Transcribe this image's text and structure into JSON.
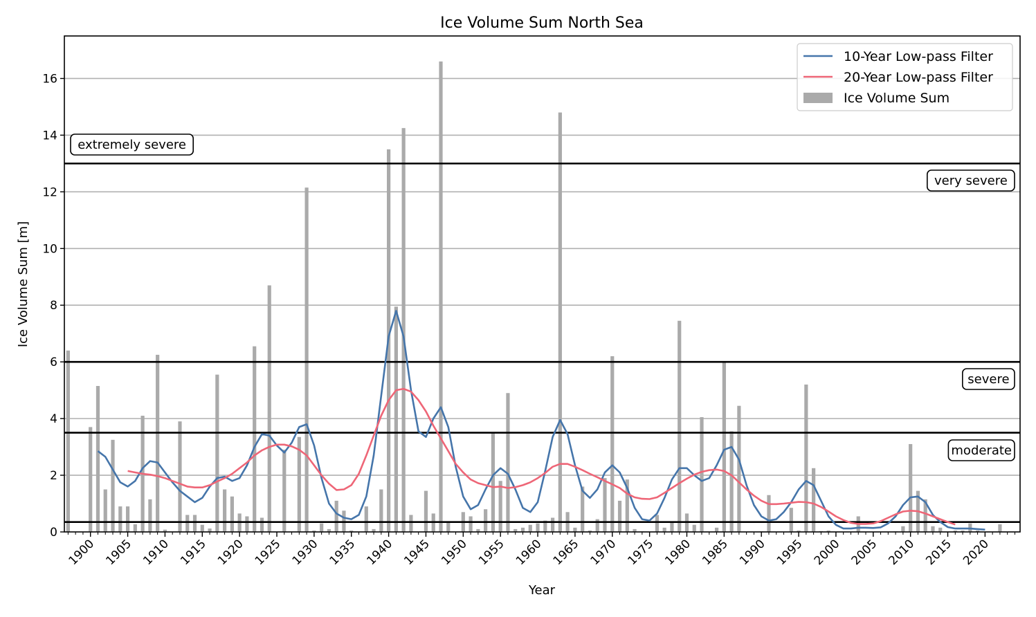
{
  "chart_data": {
    "type": "bar+line",
    "title": "Ice Volume Sum North Sea",
    "xlabel": "Year",
    "ylabel": "Ice Volume Sum [m]",
    "xlim": [
      1896.5,
      2024.7
    ],
    "ylim": [
      0,
      17.5
    ],
    "xticks": [
      1900,
      1905,
      1910,
      1915,
      1920,
      1925,
      1930,
      1935,
      1940,
      1945,
      1950,
      1955,
      1960,
      1965,
      1970,
      1975,
      1980,
      1985,
      1990,
      1995,
      2000,
      2005,
      2010,
      2015,
      2020
    ],
    "yticks": [
      0,
      2,
      4,
      6,
      8,
      10,
      12,
      14,
      16
    ],
    "grid": "horizontal",
    "legend_position": "top-right",
    "colors": {
      "bars": "#aaaaaa",
      "filter10": "#4575aa",
      "filter20": "#ee6677",
      "threshold": "#000000",
      "grid": "#b0b0b0"
    },
    "thresholds": [
      {
        "value": 0.35
      },
      {
        "value": 3.5,
        "label": "moderate"
      },
      {
        "value": 6,
        "label": "severe"
      },
      {
        "value": 13,
        "label": "very severe"
      },
      {
        "label": "extremely severe"
      }
    ],
    "series": [
      {
        "name": "10-Year Low-pass Filter",
        "kind": "line",
        "start_year": 1901,
        "values": [
          2.85,
          2.65,
          2.2,
          1.75,
          1.6,
          1.8,
          2.25,
          2.5,
          2.45,
          2.1,
          1.75,
          1.45,
          1.25,
          1.05,
          1.2,
          1.6,
          1.9,
          1.95,
          1.8,
          1.9,
          2.35,
          3.0,
          3.45,
          3.4,
          3.05,
          2.8,
          3.15,
          3.7,
          3.8,
          3.05,
          1.9,
          1.0,
          0.65,
          0.5,
          0.45,
          0.6,
          1.25,
          2.7,
          4.8,
          6.9,
          7.8,
          6.9,
          5.0,
          3.55,
          3.35,
          4.0,
          4.4,
          3.7,
          2.3,
          1.25,
          0.8,
          0.95,
          1.5,
          2.0,
          2.25,
          2.05,
          1.5,
          0.85,
          0.7,
          1.05,
          2.15,
          3.35,
          3.95,
          3.45,
          2.35,
          1.45,
          1.2,
          1.5,
          2.1,
          2.35,
          2.1,
          1.55,
          0.85,
          0.45,
          0.4,
          0.65,
          1.2,
          1.85,
          2.25,
          2.25,
          2.0,
          1.8,
          1.9,
          2.35,
          2.9,
          3.0,
          2.55,
          1.65,
          0.95,
          0.55,
          0.4,
          0.45,
          0.7,
          1.05,
          1.5,
          1.8,
          1.65,
          1.1,
          0.55,
          0.25,
          0.12,
          0.12,
          0.15,
          0.15,
          0.14,
          0.16,
          0.3,
          0.55,
          0.95,
          1.22,
          1.25,
          1.05,
          0.6,
          0.35,
          0.17,
          0.12,
          0.12,
          0.12,
          0.1,
          0.08
        ]
      },
      {
        "name": "20-Year Low-pass Filter",
        "kind": "line",
        "start_year": 1905,
        "values": [
          2.15,
          2.1,
          2.05,
          2.02,
          1.97,
          1.9,
          1.8,
          1.7,
          1.6,
          1.57,
          1.57,
          1.65,
          1.78,
          1.9,
          2.05,
          2.25,
          2.45,
          2.7,
          2.88,
          3.0,
          3.08,
          3.08,
          3.02,
          2.9,
          2.7,
          2.35,
          2.0,
          1.7,
          1.48,
          1.5,
          1.65,
          2.05,
          2.7,
          3.4,
          4.1,
          4.65,
          5.0,
          5.05,
          4.95,
          4.65,
          4.25,
          3.75,
          3.3,
          2.85,
          2.4,
          2.1,
          1.85,
          1.72,
          1.65,
          1.58,
          1.6,
          1.55,
          1.58,
          1.65,
          1.75,
          1.9,
          2.08,
          2.3,
          2.4,
          2.4,
          2.3,
          2.18,
          2.05,
          1.93,
          1.8,
          1.68,
          1.55,
          1.35,
          1.22,
          1.17,
          1.16,
          1.22,
          1.38,
          1.55,
          1.72,
          1.88,
          2.02,
          2.12,
          2.18,
          2.2,
          2.15,
          2.0,
          1.75,
          1.5,
          1.28,
          1.1,
          0.98,
          0.98,
          1.0,
          1.03,
          1.06,
          1.05,
          1.0,
          0.88,
          0.72,
          0.55,
          0.42,
          0.32,
          0.28,
          0.28,
          0.3,
          0.38,
          0.5,
          0.62,
          0.72,
          0.75,
          0.73,
          0.65,
          0.55,
          0.45,
          0.35,
          0.26
        ]
      },
      {
        "name": "Ice Volume Sum",
        "kind": "bar",
        "start_year": 1897,
        "values": [
          6.4,
          0,
          0,
          3.7,
          5.15,
          1.5,
          3.25,
          0.9,
          0.9,
          0.27,
          4.1,
          1.15,
          6.25,
          0.08,
          0,
          3.9,
          0.6,
          0.6,
          0.25,
          0.12,
          5.55,
          1.5,
          1.25,
          0.65,
          0.55,
          6.55,
          0.5,
          8.7,
          0,
          2.9,
          0,
          3.35,
          12.15,
          0.05,
          0.3,
          0.1,
          1.1,
          0.75,
          0.05,
          0,
          0.9,
          0.1,
          1.5,
          13.5,
          7.95,
          14.25,
          0.6,
          0,
          1.45,
          0.65,
          16.6,
          0.35,
          0,
          0.7,
          0.55,
          0.1,
          0.8,
          3.5,
          1.8,
          4.9,
          0.1,
          0.15,
          0.25,
          0.3,
          0.4,
          0.5,
          14.8,
          0.7,
          0.15,
          1.6,
          0.05,
          0.45,
          1.9,
          6.2,
          1.1,
          1.85,
          0.1,
          0.02,
          0,
          0.6,
          0.15,
          0.35,
          7.45,
          0.65,
          0.25,
          4.05,
          0,
          0.15,
          6.0,
          3.55,
          4.45,
          0,
          0,
          0.02,
          1.3,
          0,
          0,
          0.85,
          0.05,
          5.2,
          2.25,
          0.03,
          0.05,
          0,
          0,
          0,
          0.55,
          0,
          0,
          0,
          0,
          0.02,
          0.2,
          3.1,
          1.45,
          1.15,
          0.2,
          0.15,
          0,
          0.05,
          0.05,
          0.3,
          0.05,
          0,
          0,
          0.27
        ]
      }
    ]
  }
}
